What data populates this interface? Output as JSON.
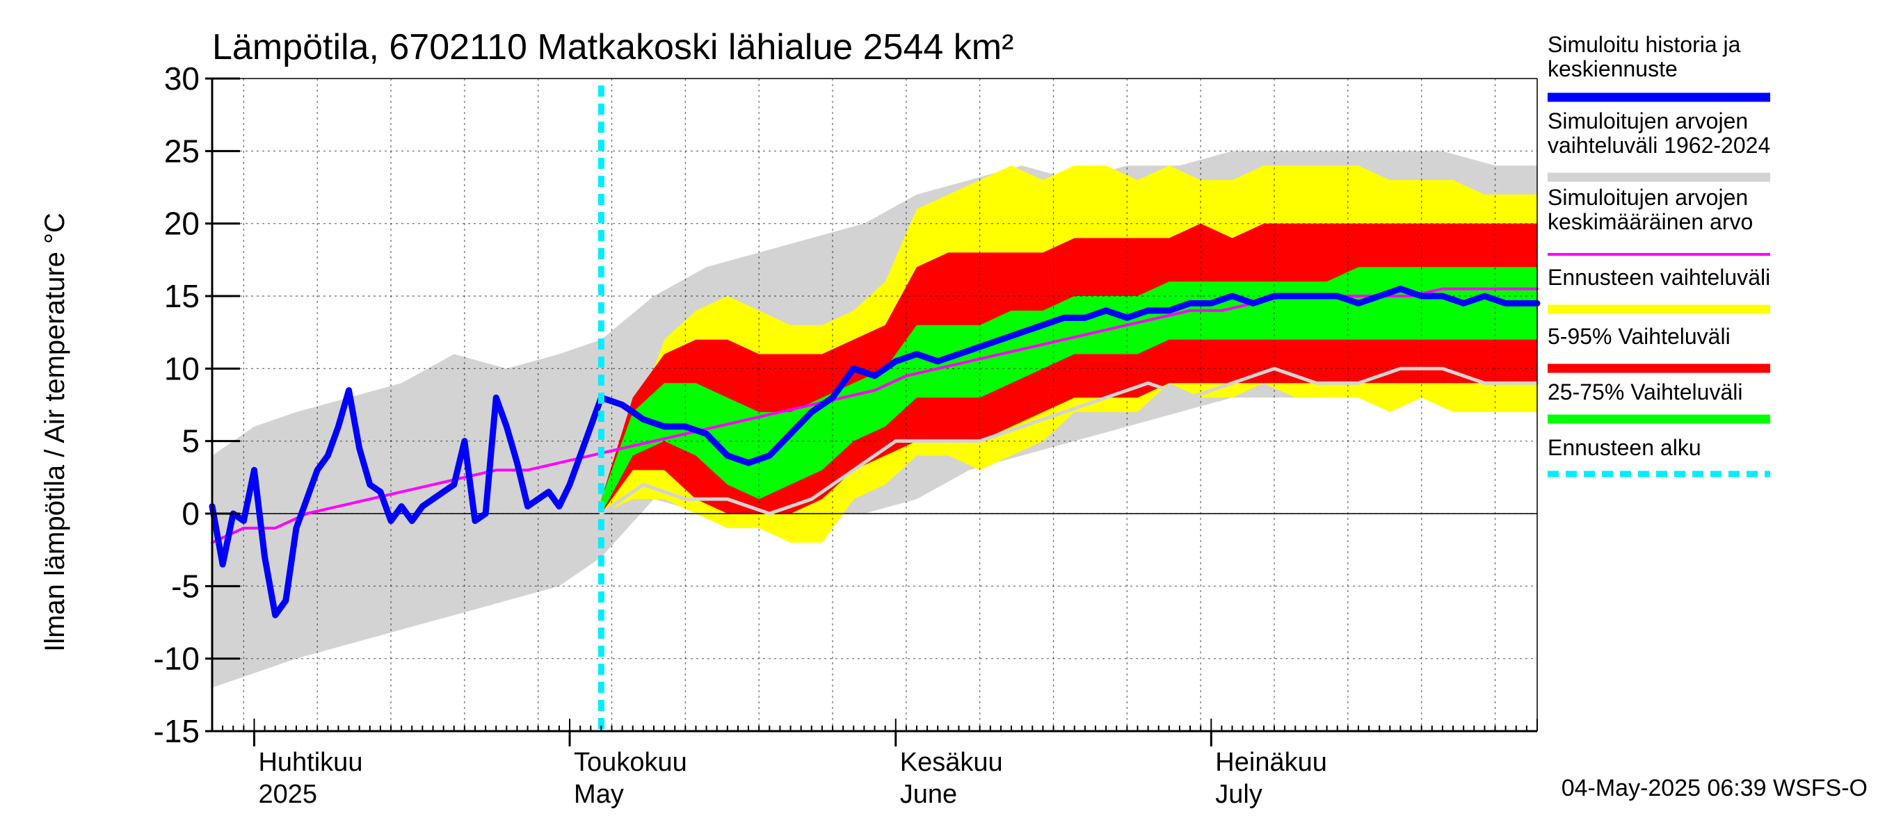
{
  "chart_data": {
    "type": "area",
    "title": "Lämpötila, 6702110 Matkakoski lähialue 2544 km²",
    "ylabel": "Ilman lämpötila / Air temperature   °C",
    "ylim": [
      -15,
      30
    ],
    "yticks": [
      -15,
      -10,
      -5,
      0,
      5,
      10,
      15,
      20,
      25,
      30
    ],
    "x_range": [
      "2025-03-28",
      "2025-08-01"
    ],
    "forecast_start": "2025-05-04",
    "month_labels": [
      {
        "date": "2025-04-01",
        "fi": "Huhtikuu",
        "en": "2025"
      },
      {
        "date": "2025-05-01",
        "fi": "Toukokuu",
        "en": "May"
      },
      {
        "date": "2025-06-01",
        "fi": "Kesäkuu",
        "en": "June"
      },
      {
        "date": "2025-07-01",
        "fi": "Heinäkuu",
        "en": "July"
      }
    ],
    "timestamp": "04-May-2025 06:39 WSFS-O",
    "grid": true,
    "legend_position": "right",
    "legend": [
      {
        "label": "Simuloitu historia ja\nkeskiennuste",
        "color": "#0000ff",
        "style": "thick"
      },
      {
        "label": "Simuloitujen arvojen\nvaihteluväli 1962-2024",
        "color": "#d3d3d3",
        "style": "thick"
      },
      {
        "label": "Simuloitujen arvojen\nkeskimääräinen arvo",
        "color": "#ff00ff",
        "style": "thin"
      },
      {
        "label": "Ennusteen vaihteluväli",
        "color": "#ffff00",
        "style": "thick"
      },
      {
        "label": "5-95% Vaihteluväli",
        "color": "#ff0000",
        "style": "thick"
      },
      {
        "label": "25-75% Vaihteluväli",
        "color": "#00ff00",
        "style": "thick"
      },
      {
        "label": "Ennusteen alku",
        "color": "#00eeff",
        "style": "dashed"
      }
    ],
    "colors": {
      "history": "#0000ff",
      "hist_range": "#d3d3d3",
      "hist_mean": "#ff00ff",
      "forecast_range": "#ffff00",
      "p5_95": "#ff0000",
      "p25_75": "#00ff00",
      "forecast_start": "#00eeff",
      "min_line": "#d3d3d3"
    },
    "series": [
      {
        "name": "Simuloitujen arvojen vaihteluväli 1962-2024",
        "kind": "band",
        "x": [
          "2025-03-28",
          "2025-04-01",
          "2025-04-05",
          "2025-04-10",
          "2025-04-15",
          "2025-04-20",
          "2025-04-25",
          "2025-04-30",
          "2025-05-04",
          "2025-05-09",
          "2025-05-14",
          "2025-05-19",
          "2025-05-24",
          "2025-05-29",
          "2025-06-03",
          "2025-06-08",
          "2025-06-13",
          "2025-06-18",
          "2025-06-23",
          "2025-06-28",
          "2025-07-03",
          "2025-07-08",
          "2025-07-13",
          "2025-07-18",
          "2025-07-23",
          "2025-07-28",
          "2025-08-01"
        ],
        "low": [
          -12,
          -11,
          -10,
          -9,
          -8,
          -7,
          -6,
          -5,
          -3,
          1,
          0,
          -1,
          0,
          0,
          1,
          3,
          4,
          5,
          6,
          7,
          8,
          8,
          8,
          9,
          8,
          8,
          8
        ],
        "high": [
          4,
          6,
          7,
          8,
          9,
          11,
          10,
          11,
          12,
          15,
          17,
          18,
          19,
          20,
          22,
          23,
          24,
          23,
          24,
          24,
          25,
          25,
          25,
          25,
          25,
          24,
          24
        ]
      },
      {
        "name": "Ennusteen vaihteluväli",
        "kind": "band",
        "x": [
          "2025-05-04",
          "2025-05-07",
          "2025-05-10",
          "2025-05-13",
          "2025-05-16",
          "2025-05-19",
          "2025-05-22",
          "2025-05-25",
          "2025-05-28",
          "2025-05-31",
          "2025-06-03",
          "2025-06-06",
          "2025-06-09",
          "2025-06-12",
          "2025-06-15",
          "2025-06-18",
          "2025-06-21",
          "2025-06-24",
          "2025-06-27",
          "2025-06-30",
          "2025-07-03",
          "2025-07-06",
          "2025-07-09",
          "2025-07-12",
          "2025-07-15",
          "2025-07-18",
          "2025-07-21",
          "2025-07-24",
          "2025-07-27",
          "2025-07-30",
          "2025-08-01"
        ],
        "low": [
          0,
          1,
          1,
          0,
          -1,
          -1,
          -2,
          -2,
          1,
          2,
          4,
          4,
          3,
          4,
          5,
          7,
          7,
          7,
          9,
          8,
          8,
          9,
          8,
          8,
          8,
          7,
          8,
          7,
          7,
          7,
          7
        ],
        "high": [
          1,
          6,
          12,
          14,
          15,
          14,
          13,
          13,
          14,
          16,
          21,
          22,
          23,
          24,
          23,
          24,
          24,
          23,
          24,
          23,
          23,
          24,
          24,
          24,
          24,
          23,
          23,
          23,
          22,
          22,
          22
        ]
      },
      {
        "name": "5-95% Vaihteluväli",
        "kind": "band",
        "x": [
          "2025-05-04",
          "2025-05-07",
          "2025-05-10",
          "2025-05-13",
          "2025-05-16",
          "2025-05-19",
          "2025-05-22",
          "2025-05-25",
          "2025-05-28",
          "2025-05-31",
          "2025-06-03",
          "2025-06-06",
          "2025-06-09",
          "2025-06-12",
          "2025-06-15",
          "2025-06-18",
          "2025-06-21",
          "2025-06-24",
          "2025-06-27",
          "2025-06-30",
          "2025-07-03",
          "2025-07-06",
          "2025-07-09",
          "2025-07-12",
          "2025-07-15",
          "2025-07-18",
          "2025-07-21",
          "2025-07-24",
          "2025-07-27",
          "2025-07-30",
          "2025-08-01"
        ],
        "low": [
          0,
          3,
          3,
          1,
          0,
          0,
          0,
          1,
          3,
          4,
          5,
          5,
          5,
          6,
          7,
          8,
          8,
          8,
          9,
          9,
          9,
          9,
          9,
          9,
          9,
          9,
          9,
          9,
          9,
          9,
          9
        ],
        "high": [
          1,
          8,
          11,
          12,
          12,
          11,
          11,
          11,
          12,
          13,
          17,
          18,
          18,
          18,
          18,
          19,
          19,
          19,
          19,
          20,
          19,
          20,
          20,
          20,
          20,
          20,
          20,
          20,
          20,
          20,
          20
        ]
      },
      {
        "name": "25-75% Vaihteluväli",
        "kind": "band",
        "x": [
          "2025-05-04",
          "2025-05-07",
          "2025-05-10",
          "2025-05-13",
          "2025-05-16",
          "2025-05-19",
          "2025-05-22",
          "2025-05-25",
          "2025-05-28",
          "2025-05-31",
          "2025-06-03",
          "2025-06-06",
          "2025-06-09",
          "2025-06-12",
          "2025-06-15",
          "2025-06-18",
          "2025-06-21",
          "2025-06-24",
          "2025-06-27",
          "2025-06-30",
          "2025-07-03",
          "2025-07-06",
          "2025-07-09",
          "2025-07-12",
          "2025-07-15",
          "2025-07-18",
          "2025-07-21",
          "2025-07-24",
          "2025-07-27",
          "2025-07-30",
          "2025-08-01"
        ],
        "low": [
          0,
          4,
          5,
          4,
          2,
          1,
          2,
          3,
          5,
          6,
          8,
          8,
          8,
          9,
          10,
          11,
          11,
          11,
          12,
          12,
          12,
          12,
          12,
          12,
          12,
          12,
          12,
          12,
          12,
          12,
          12
        ],
        "high": [
          1,
          7,
          9,
          9,
          8,
          7,
          7,
          8,
          9,
          10,
          13,
          13,
          13,
          14,
          14,
          15,
          15,
          15,
          16,
          16,
          16,
          16,
          16,
          16,
          17,
          17,
          17,
          17,
          17,
          17,
          17
        ]
      },
      {
        "name": "Simuloitujen arvojen keskimääräinen arvo",
        "kind": "line",
        "x": [
          "2025-03-28",
          "2025-03-31",
          "2025-04-03",
          "2025-04-06",
          "2025-04-09",
          "2025-04-12",
          "2025-04-15",
          "2025-04-18",
          "2025-04-21",
          "2025-04-24",
          "2025-04-27",
          "2025-04-30",
          "2025-05-03",
          "2025-05-06",
          "2025-05-09",
          "2025-05-12",
          "2025-05-15",
          "2025-05-18",
          "2025-05-21",
          "2025-05-24",
          "2025-05-27",
          "2025-05-30",
          "2025-06-02",
          "2025-06-05",
          "2025-06-08",
          "2025-06-11",
          "2025-06-14",
          "2025-06-17",
          "2025-06-20",
          "2025-06-23",
          "2025-06-26",
          "2025-06-29",
          "2025-07-02",
          "2025-07-05",
          "2025-07-08",
          "2025-07-11",
          "2025-07-14",
          "2025-07-17",
          "2025-07-20",
          "2025-07-23",
          "2025-07-26",
          "2025-07-29",
          "2025-08-01"
        ],
        "y": [
          -2,
          -1,
          -1,
          0,
          0.5,
          1,
          1.5,
          2,
          2.5,
          3,
          3,
          3.5,
          4,
          4.5,
          5,
          5.5,
          6,
          6.5,
          7,
          7.5,
          8,
          8.5,
          9.5,
          10,
          10.5,
          11,
          11.5,
          12,
          12.5,
          13,
          13.5,
          14,
          14,
          14.5,
          15,
          15,
          15,
          15,
          15,
          15.5,
          15.5,
          15.5,
          15.5
        ]
      },
      {
        "name": "Ennusteen minimi",
        "kind": "line",
        "x": [
          "2025-05-04",
          "2025-05-08",
          "2025-05-12",
          "2025-05-16",
          "2025-05-20",
          "2025-05-24",
          "2025-05-28",
          "2025-06-01",
          "2025-06-05",
          "2025-06-09",
          "2025-06-13",
          "2025-06-17",
          "2025-06-21",
          "2025-06-25",
          "2025-06-29",
          "2025-07-03",
          "2025-07-07",
          "2025-07-11",
          "2025-07-15",
          "2025-07-19",
          "2025-07-23",
          "2025-07-27",
          "2025-08-01"
        ],
        "y": [
          0,
          2,
          1,
          1,
          0,
          1,
          3,
          5,
          5,
          5,
          6,
          7,
          8,
          9,
          8,
          9,
          10,
          9,
          9,
          10,
          10,
          9,
          9
        ]
      },
      {
        "name": "Simuloitu historia ja keskiennuste",
        "kind": "line",
        "x": [
          "2025-03-28",
          "2025-03-29",
          "2025-03-30",
          "2025-03-31",
          "2025-04-01",
          "2025-04-02",
          "2025-04-03",
          "2025-04-04",
          "2025-04-05",
          "2025-04-06",
          "2025-04-07",
          "2025-04-08",
          "2025-04-09",
          "2025-04-10",
          "2025-04-11",
          "2025-04-12",
          "2025-04-13",
          "2025-04-14",
          "2025-04-15",
          "2025-04-16",
          "2025-04-17",
          "2025-04-18",
          "2025-04-19",
          "2025-04-20",
          "2025-04-21",
          "2025-04-22",
          "2025-04-23",
          "2025-04-24",
          "2025-04-25",
          "2025-04-26",
          "2025-04-27",
          "2025-04-28",
          "2025-04-29",
          "2025-04-30",
          "2025-05-01",
          "2025-05-02",
          "2025-05-03",
          "2025-05-04",
          "2025-05-06",
          "2025-05-08",
          "2025-05-10",
          "2025-05-12",
          "2025-05-14",
          "2025-05-16",
          "2025-05-18",
          "2025-05-20",
          "2025-05-22",
          "2025-05-24",
          "2025-05-26",
          "2025-05-28",
          "2025-05-30",
          "2025-06-01",
          "2025-06-03",
          "2025-06-05",
          "2025-06-07",
          "2025-06-09",
          "2025-06-11",
          "2025-06-13",
          "2025-06-15",
          "2025-06-17",
          "2025-06-19",
          "2025-06-21",
          "2025-06-23",
          "2025-06-25",
          "2025-06-27",
          "2025-06-29",
          "2025-07-01",
          "2025-07-03",
          "2025-07-05",
          "2025-07-07",
          "2025-07-09",
          "2025-07-11",
          "2025-07-13",
          "2025-07-15",
          "2025-07-17",
          "2025-07-19",
          "2025-07-21",
          "2025-07-23",
          "2025-07-25",
          "2025-07-27",
          "2025-07-29",
          "2025-08-01"
        ],
        "y": [
          0.5,
          -3.5,
          0,
          -0.5,
          3,
          -3,
          -7,
          -6,
          -1,
          1,
          3,
          4,
          6,
          8.5,
          4.5,
          2,
          1.5,
          -0.5,
          0.5,
          -0.5,
          0.5,
          1,
          1.5,
          2,
          5,
          -0.5,
          0,
          8,
          6,
          3.5,
          0.5,
          1,
          1.5,
          0.5,
          2,
          4,
          6,
          8,
          7.5,
          6.5,
          6,
          6,
          5.5,
          4,
          3.5,
          4,
          5.5,
          7,
          8,
          10,
          9.5,
          10.5,
          11,
          10.5,
          11,
          11.5,
          12,
          12.5,
          13,
          13.5,
          13.5,
          14,
          13.5,
          14,
          14,
          14.5,
          14.5,
          15,
          14.5,
          15,
          15,
          15,
          15,
          14.5,
          15,
          15.5,
          15,
          15,
          14.5,
          15,
          14.5,
          14.5
        ]
      }
    ]
  }
}
